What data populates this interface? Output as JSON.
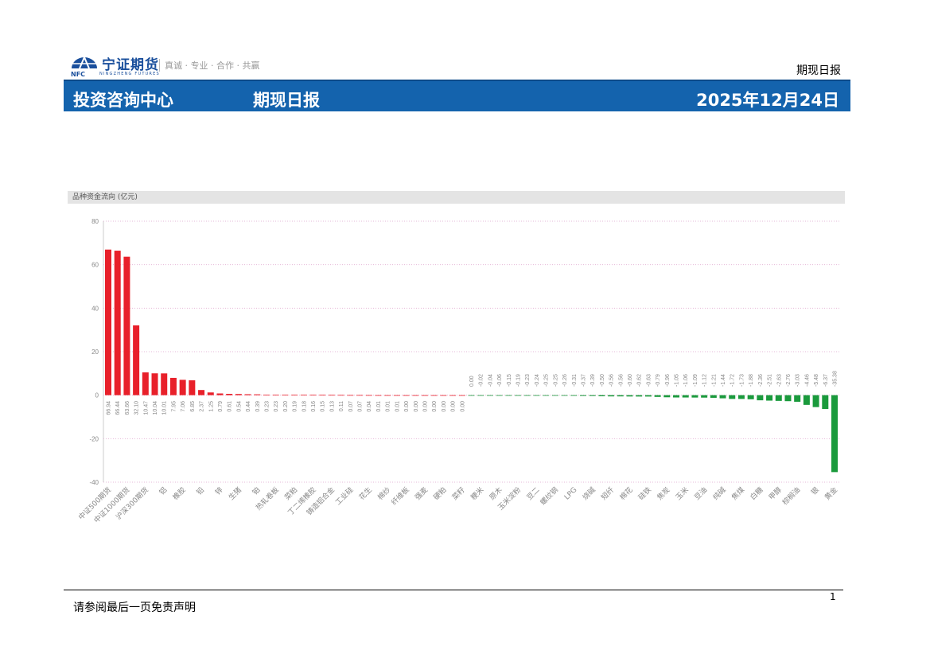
{
  "header": {
    "logo_cn": "宁证期货",
    "logo_en": "NINGZHENG FUTURES",
    "logo_abbr": "NFC",
    "tagline": "真诚 · 专业 · 合作 · 共赢",
    "doc_type": "期现日报"
  },
  "banner": {
    "dept": "投资咨询中心",
    "title": "期现日报",
    "date": "2025年12月24日"
  },
  "footer": {
    "disclaimer": "请参阅最后一页免责声明",
    "page": "1"
  },
  "colors": {
    "positive": "#e8202a",
    "negative": "#1a9a3c",
    "banner": "#1463ad"
  },
  "chart_data": {
    "type": "bar",
    "title": "品种资金流向 (亿元)",
    "ylim": [
      -40,
      80
    ],
    "yticks": [
      80,
      60,
      40,
      20,
      0,
      -20,
      -40
    ],
    "grid": true,
    "categories": [
      "中证500期货",
      "",
      "中证1000期货",
      "",
      "沪深300期货",
      "",
      "铝",
      "",
      "橡胶",
      "",
      "铅",
      "",
      "锌",
      "",
      "生猪",
      "",
      "铂",
      "",
      "热轧卷板",
      "",
      "菜粕",
      "",
      "丁二烯橡胶",
      "",
      "铸造铝合金",
      "",
      "工业硅",
      "",
      "花生",
      "",
      "棉纱",
      "",
      "纤维板",
      "",
      "强麦",
      "",
      "硬粕",
      "",
      "菜籽",
      "",
      "粳米",
      "",
      "原木",
      "",
      "玉米淀粉",
      "",
      "豆二",
      "",
      "螺纹钢",
      "",
      "LPG",
      "",
      "烧碱",
      "",
      "短纤",
      "",
      "棉花",
      "",
      "硅铁",
      "",
      "焦炭",
      "",
      "玉米",
      "",
      "豆油",
      "",
      "纯碱",
      "",
      "焦煤",
      "",
      "白糖",
      "",
      "甲醇",
      "",
      "棕榈油",
      "",
      "银",
      "",
      "黄金"
    ],
    "labels": [
      "66.94",
      "66.44",
      "63.66",
      "32.10",
      "10.47",
      "10.04",
      "10.01",
      "7.95",
      "7.06",
      "6.85",
      "2.37",
      "1.25",
      "0.79",
      "0.61",
      "0.54",
      "0.44",
      "0.39",
      "0.23",
      "0.23",
      "0.20",
      "0.19",
      "0.18",
      "0.16",
      "0.15",
      "0.13",
      "0.11",
      "0.07",
      "0.07",
      "0.04",
      "0.01",
      "0.01",
      "0.01",
      "0.00",
      "0.00",
      "0.00",
      "0.00",
      "0.00",
      "0.00",
      "0.00",
      "0.00",
      "-0.02",
      "-0.04",
      "-0.06",
      "-0.15",
      "-0.19",
      "-0.23",
      "-0.24",
      "-0.25",
      "-0.25",
      "-0.26",
      "-0.31",
      "-0.37",
      "-0.39",
      "-0.50",
      "-0.56",
      "-0.56",
      "-0.60",
      "-0.62",
      "-0.63",
      "-0.79",
      "-0.96",
      "-1.05",
      "-1.06",
      "-1.09",
      "-1.12",
      "-1.21",
      "-1.44",
      "-1.72",
      "-1.73",
      "-1.88",
      "-2.36",
      "-2.51",
      "-2.63",
      "-2.76",
      "-3.03",
      "-4.46",
      "-5.48",
      "-6.37",
      "-35.38"
    ],
    "values": [
      66.94,
      66.44,
      63.66,
      32.1,
      10.47,
      10.04,
      10.01,
      7.95,
      7.06,
      6.85,
      2.37,
      1.25,
      0.79,
      0.61,
      0.54,
      0.44,
      0.39,
      0.23,
      0.23,
      0.2,
      0.19,
      0.18,
      0.16,
      0.15,
      0.13,
      0.11,
      0.07,
      0.07,
      0.04,
      0.01,
      0.01,
      0.01,
      0.0,
      0.0,
      0.0,
      0.0,
      0.0,
      0.0,
      0.0,
      -0.0,
      -0.02,
      -0.04,
      -0.06,
      -0.15,
      -0.19,
      -0.23,
      -0.24,
      -0.25,
      -0.25,
      -0.26,
      -0.31,
      -0.37,
      -0.39,
      -0.5,
      -0.56,
      -0.56,
      -0.6,
      -0.62,
      -0.63,
      -0.79,
      -0.96,
      -1.05,
      -1.06,
      -1.09,
      -1.12,
      -1.21,
      -1.44,
      -1.72,
      -1.73,
      -1.88,
      -2.36,
      -2.51,
      -2.63,
      -2.76,
      -3.03,
      -4.46,
      -5.48,
      -6.37,
      -35.38
    ]
  }
}
